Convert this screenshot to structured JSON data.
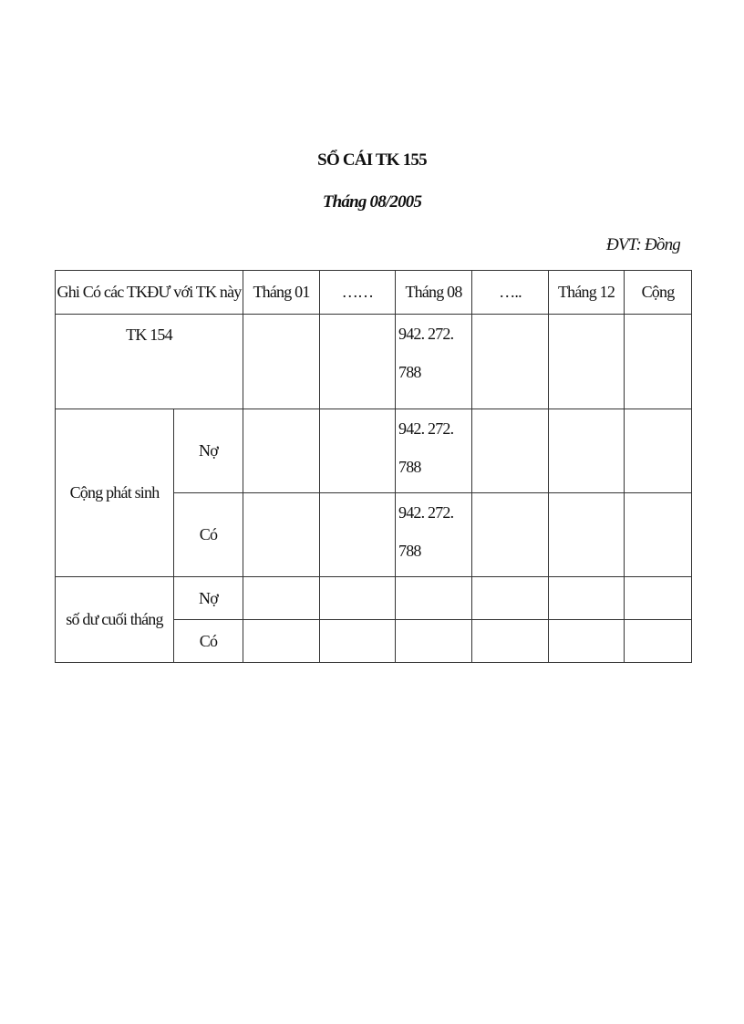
{
  "title": "SỔ CÁI TK 155",
  "subtitle": "Tháng 08/2005",
  "unit": "ĐVT: Đồng",
  "table": {
    "headers": [
      "Ghi Có các TKĐƯ với TK này",
      "Tháng 01",
      "……",
      "Tháng 08",
      "…..",
      "Tháng 12",
      "Cộng"
    ],
    "rows": {
      "tk154": {
        "label": "TK 154",
        "thang08": [
          "942. 272.",
          "788"
        ]
      },
      "cong_phat_sinh": {
        "label": "Cộng phát sinh",
        "no_label": "Nợ",
        "co_label": "Có",
        "no_thang08": [
          "942. 272.",
          "788"
        ],
        "co_thang08": [
          "942. 272.",
          "788"
        ]
      },
      "so_du": {
        "label": "số dư cuối tháng",
        "no_label": "Nợ",
        "co_label": "Có"
      }
    }
  }
}
